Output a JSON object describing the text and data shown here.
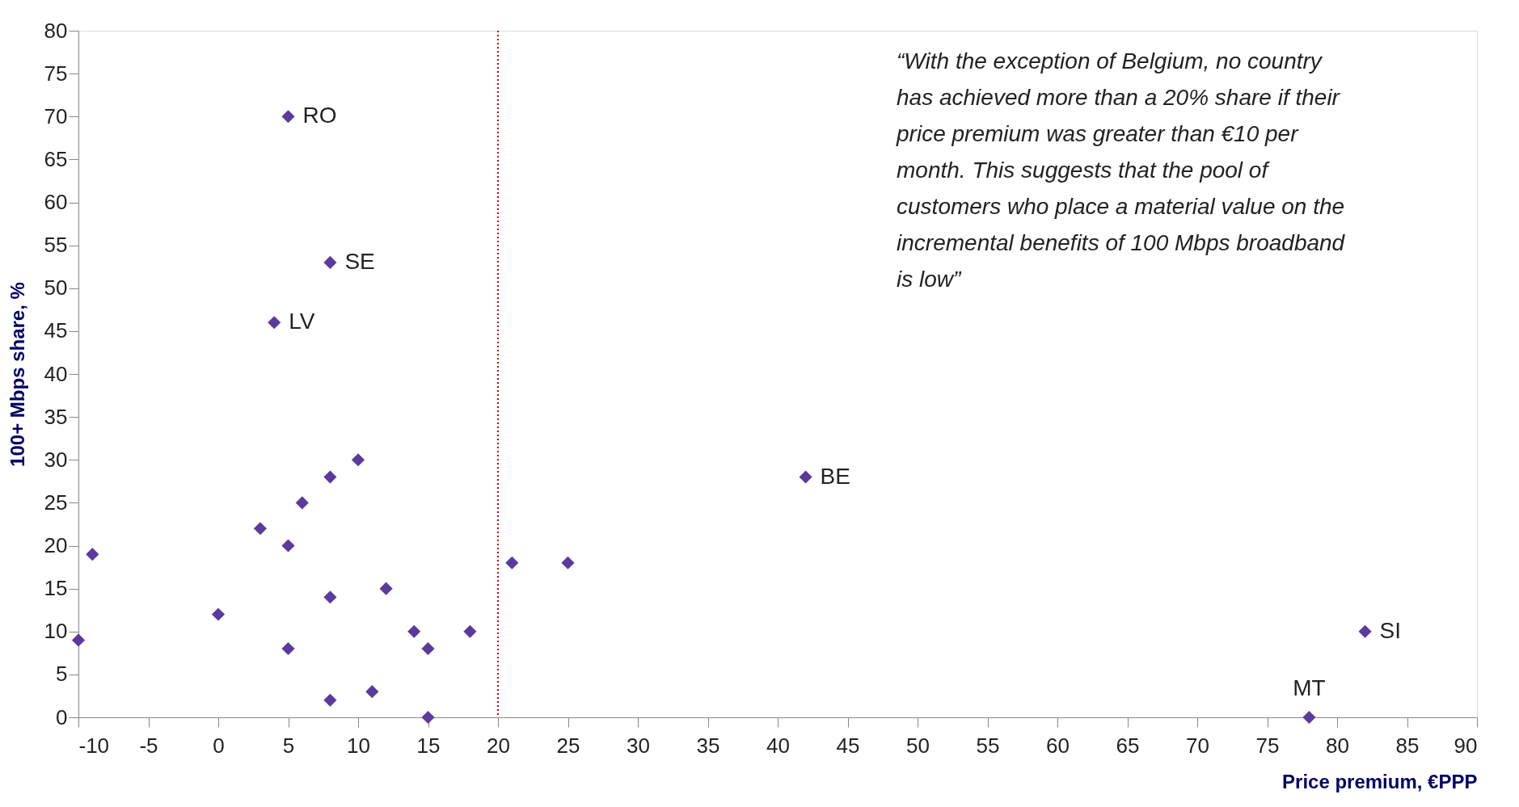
{
  "chart_data": {
    "type": "scatter",
    "xlabel": "Price premium, €PPP",
    "ylabel": "100+ Mbps share, %",
    "x": [
      -10,
      -9,
      0,
      3,
      5,
      5,
      6,
      8,
      8,
      8,
      10,
      11,
      12,
      14,
      15,
      15,
      18,
      21,
      25,
      5,
      8,
      4,
      42,
      82,
      78
    ],
    "series": [
      {
        "color": "#5b3a9e",
        "values": [
          9,
          19,
          12,
          22,
          20,
          8,
          25,
          28,
          14,
          2,
          30,
          3,
          15,
          10,
          8,
          0,
          10,
          18,
          18,
          70,
          53,
          46,
          28,
          10,
          0
        ]
      }
    ],
    "xlim": [
      -10,
      90
    ],
    "xticks": [
      -10,
      -5,
      0,
      5,
      10,
      15,
      20,
      25,
      30,
      35,
      40,
      45,
      50,
      55,
      60,
      65,
      70,
      75,
      80,
      85,
      90
    ],
    "ylim": [
      0,
      80
    ],
    "yticks": [
      0,
      5,
      10,
      15,
      20,
      25,
      30,
      35,
      40,
      45,
      50,
      55,
      60,
      65,
      70,
      75,
      80
    ],
    "marker": "diamond",
    "grid": false,
    "ref_lines": [
      {
        "axis": "x",
        "value": 20,
        "color": "#c00000",
        "line_style": "dotted"
      }
    ],
    "annotations": [
      {
        "text": "RO",
        "x": 5,
        "y": 70
      },
      {
        "text": "SE",
        "x": 8,
        "y": 53
      },
      {
        "text": "LV",
        "x": 4,
        "y": 46
      },
      {
        "text": "BE",
        "x": 42,
        "y": 28
      },
      {
        "text": "SI",
        "x": 82,
        "y": 10
      },
      {
        "text": "MT",
        "x": 78,
        "y": 0
      },
      "“With the exception of Belgium, no country has achieved more than a 20% share if their price premium was greater than €10 per month.  This suggests that the pool of customers who place a material value on the incremental benefits of 100 Mbps broadband is low”"
    ]
  }
}
